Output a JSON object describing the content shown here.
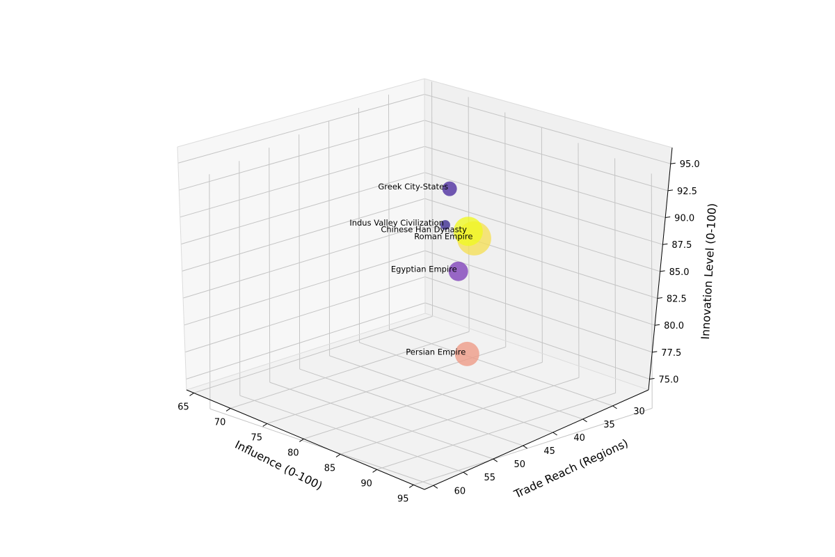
{
  "chart_data": {
    "type": "scatter3d",
    "title": "",
    "xlabel": "Influence (0-100)",
    "ylabel": "Trade Reach (Regions)",
    "zlabel": "Innovation Level (0-100)",
    "x_ticks": [
      "95",
      "90",
      "85",
      "80",
      "75",
      "70",
      "65"
    ],
    "y_ticks": [
      "60",
      "55",
      "50",
      "45",
      "40",
      "35",
      "30"
    ],
    "z_ticks": [
      "75.0",
      "77.5",
      "80.0",
      "82.5",
      "85.0",
      "87.5",
      "90.0",
      "92.5",
      "95.0"
    ],
    "grid": true,
    "points": [
      {
        "label": "Roman Empire",
        "influence": 95,
        "trade_reach": 50,
        "innovation": 94,
        "color": "#f5df56"
      },
      {
        "label": "Chinese Han Dynasty",
        "influence": 90,
        "trade_reach": 45,
        "innovation": 92,
        "color": "#f0f921"
      },
      {
        "label": "Persian Empire",
        "influence": 85,
        "trade_reach": 40,
        "innovation": 78,
        "color": "#ee9a85"
      },
      {
        "label": "Egyptian Empire",
        "influence": 80,
        "trade_reach": 35,
        "innovation": 83,
        "color": "#7e3fb8"
      },
      {
        "label": "Greek City-States",
        "influence": 75,
        "trade_reach": 30,
        "innovation": 88,
        "color": "#4a2a9d"
      },
      {
        "label": "Indus Valley Civilization",
        "influence": 70,
        "trade_reach": 25,
        "innovation": 82,
        "color": "#3a2a8f"
      }
    ]
  }
}
